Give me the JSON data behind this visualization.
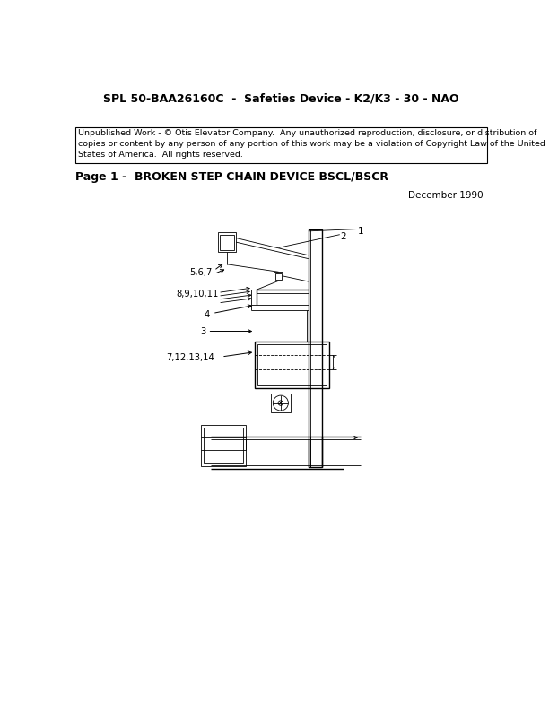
{
  "title": "SPL 50-BAA26160C  -  Safeties Device - K2/K3 - 30 - NAO",
  "copyright_text": "Unpublished Work - © Otis Elevator Company.  Any unauthorized reproduction, disclosure, or distribution of\ncopies or content by any person of any portion of this work may be a violation of Copyright Law of the United\nStates of America.  All rights reserved.",
  "page_title": "Page 1 -  BROKEN STEP CHAIN DEVICE BSCL/BSCR",
  "date_text": "December 1990",
  "bg_color": "#ffffff",
  "text_color": "#000000",
  "lw_thin": 0.6,
  "lw_med": 1.0,
  "lw_thick": 1.5,
  "title_fontsize": 9,
  "page_title_fontsize": 9,
  "copyright_fontsize": 6.8,
  "label_fontsize": 7,
  "date_fontsize": 7.5
}
